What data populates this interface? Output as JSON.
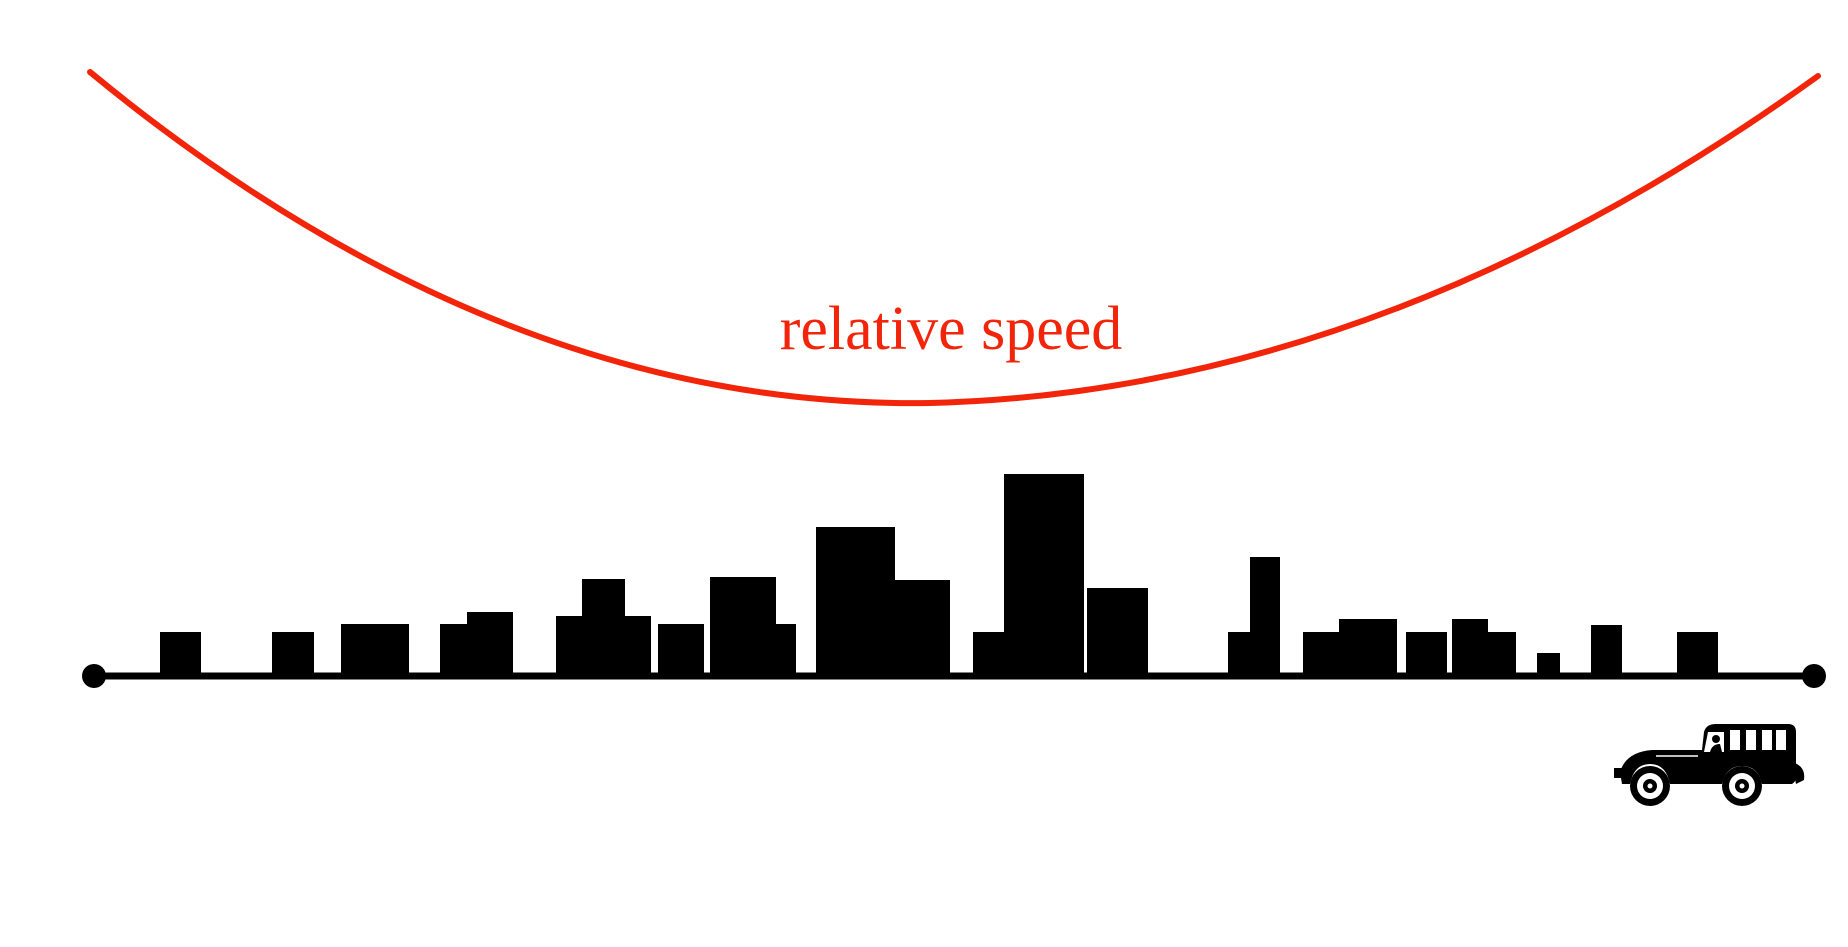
{
  "diagram": {
    "curve_label": "relative speed",
    "colors": {
      "curve": "#f2250a",
      "skyline": "#000000",
      "road": "#000000"
    },
    "icons": {
      "vehicle": "vintage-car-icon"
    }
  }
}
